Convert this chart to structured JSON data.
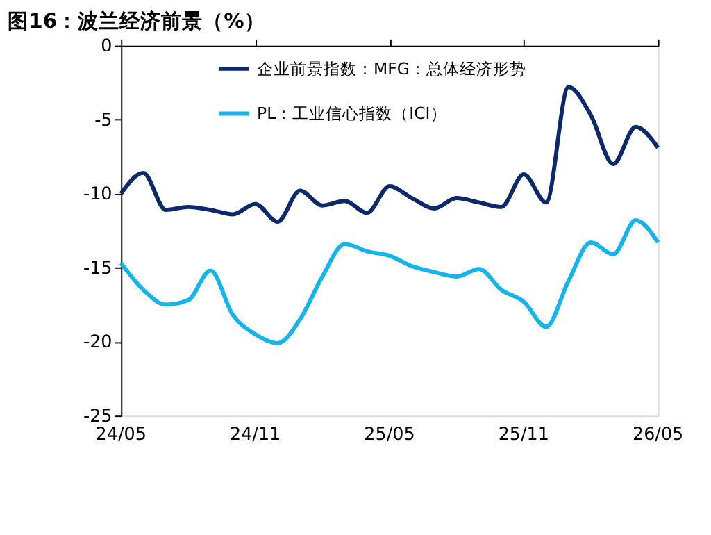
{
  "chart_data": {
    "type": "line",
    "title": "图16：波兰经济前景（%）",
    "categories": [
      "24/05",
      null,
      null,
      null,
      null,
      null,
      "24/11",
      null,
      null,
      null,
      null,
      null,
      "25/05",
      null,
      null,
      null,
      null,
      null,
      "25/11",
      null,
      null,
      null,
      null,
      null,
      "26/05"
    ],
    "series": [
      {
        "name": "企业前景指数：MFG：总体经济形势",
        "color": "#0c2a6b",
        "values": [
          -10,
          -8.6,
          -11.1,
          -10.9,
          -11.1,
          -11.4,
          -10.7,
          -11.9,
          -9.8,
          -10.8,
          -10.5,
          -11.3,
          -9.5,
          -10.3,
          -11.0,
          -10.3,
          -10.6,
          -10.9,
          -8.7,
          -10.6,
          -2.8,
          -4.7,
          -8.0,
          -5.5,
          -6.9
        ]
      },
      {
        "name": "PL：工业信心指数（ICI）",
        "color": "#16b4ec",
        "values": [
          -14.7,
          -16.5,
          -17.5,
          -17.2,
          -15.2,
          -18.2,
          -19.5,
          -20.1,
          -18.5,
          -15.6,
          -13.4,
          -13.9,
          -14.2,
          -14.9,
          -15.3,
          -15.6,
          -15.1,
          -16.5,
          -17.3,
          -19.0,
          -15.9,
          -13.3,
          -14.1,
          -11.8,
          -13.3
        ]
      }
    ],
    "ylim": [
      -25,
      0
    ],
    "yticks": [
      -25,
      -20,
      -15,
      -10,
      -5,
      0
    ],
    "grid": false,
    "legend": "top right",
    "marker": "none",
    "line_style": "solid"
  }
}
